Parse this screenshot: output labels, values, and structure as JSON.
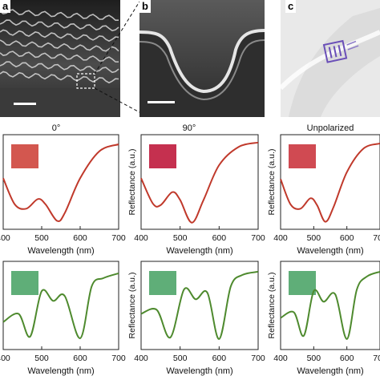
{
  "panels": {
    "a": {
      "label": "a"
    },
    "b": {
      "label": "b"
    },
    "c": {
      "label": "c"
    }
  },
  "columns": [
    "0°",
    "90°",
    "Unpolarized"
  ],
  "axis": {
    "xlabel": "Wavelength (nm)",
    "ylabel": "Reflectance (a.u.)",
    "xticks": [
      "400",
      "500",
      "600",
      "700"
    ]
  },
  "colors": {
    "red_curve": "#c0392b",
    "green_curve": "#4e8a2e",
    "swatch_red_0": "#d3574f",
    "swatch_red_90": "#c5304f",
    "swatch_red_un": "#d04a52",
    "swatch_green": "#5fae78"
  },
  "chart_data": [
    {
      "type": "line",
      "panel": "row1-0deg",
      "xlabel": "Wavelength",
      "ylabel": "",
      "xlim": [
        400,
        700
      ],
      "series": [
        {
          "x": [
            400,
            430,
            460,
            490,
            510,
            540,
            560,
            600,
            650,
            700
          ],
          "y": [
            0.55,
            0.25,
            0.2,
            0.31,
            0.25,
            0.06,
            0.15,
            0.55,
            0.86,
            0.94
          ]
        }
      ]
    },
    {
      "type": "line",
      "panel": "row1-90deg",
      "xlabel": "Wavelength",
      "ylabel": "Reflectance (a.u.)",
      "xlim": [
        400,
        700
      ],
      "series": [
        {
          "x": [
            400,
            430,
            450,
            480,
            500,
            530,
            560,
            600,
            650,
            700
          ],
          "y": [
            0.55,
            0.26,
            0.24,
            0.39,
            0.3,
            0.04,
            0.3,
            0.7,
            0.91,
            0.96
          ]
        }
      ]
    },
    {
      "type": "line",
      "panel": "row1-unpolarized",
      "xlabel": "Wavelength",
      "ylabel": "Reflectance (a.u.)",
      "xlim": [
        400,
        700
      ],
      "series": [
        {
          "x": [
            400,
            430,
            460,
            490,
            510,
            535,
            560,
            600,
            650,
            700
          ],
          "y": [
            0.54,
            0.25,
            0.2,
            0.32,
            0.24,
            0.05,
            0.22,
            0.62,
            0.89,
            0.95
          ]
        }
      ]
    },
    {
      "type": "line",
      "panel": "row2-0deg",
      "xlabel": "Wavelength",
      "ylabel": "",
      "xlim": [
        400,
        700
      ],
      "series": [
        {
          "x": [
            400,
            440,
            470,
            500,
            530,
            560,
            600,
            630,
            660,
            700
          ],
          "y": [
            0.3,
            0.4,
            0.12,
            0.68,
            0.56,
            0.62,
            0.1,
            0.74,
            0.84,
            0.9
          ]
        }
      ]
    },
    {
      "type": "line",
      "panel": "row2-90deg",
      "xlabel": "Wavelength",
      "ylabel": "Reflectance (a.u.)",
      "xlim": [
        400,
        700
      ],
      "series": [
        {
          "x": [
            400,
            440,
            475,
            510,
            540,
            570,
            600,
            630,
            660,
            700
          ],
          "y": [
            0.4,
            0.45,
            0.11,
            0.7,
            0.58,
            0.66,
            0.09,
            0.74,
            0.88,
            0.92
          ]
        }
      ]
    },
    {
      "type": "line",
      "panel": "row2-unpolarized",
      "xlabel": "Wavelength",
      "ylabel": "Reflectance (a.u.)",
      "xlim": [
        400,
        700
      ],
      "series": [
        {
          "x": [
            400,
            440,
            470,
            500,
            530,
            565,
            600,
            630,
            660,
            700
          ],
          "y": [
            0.35,
            0.42,
            0.13,
            0.68,
            0.55,
            0.64,
            0.09,
            0.7,
            0.86,
            0.92
          ]
        }
      ]
    }
  ]
}
